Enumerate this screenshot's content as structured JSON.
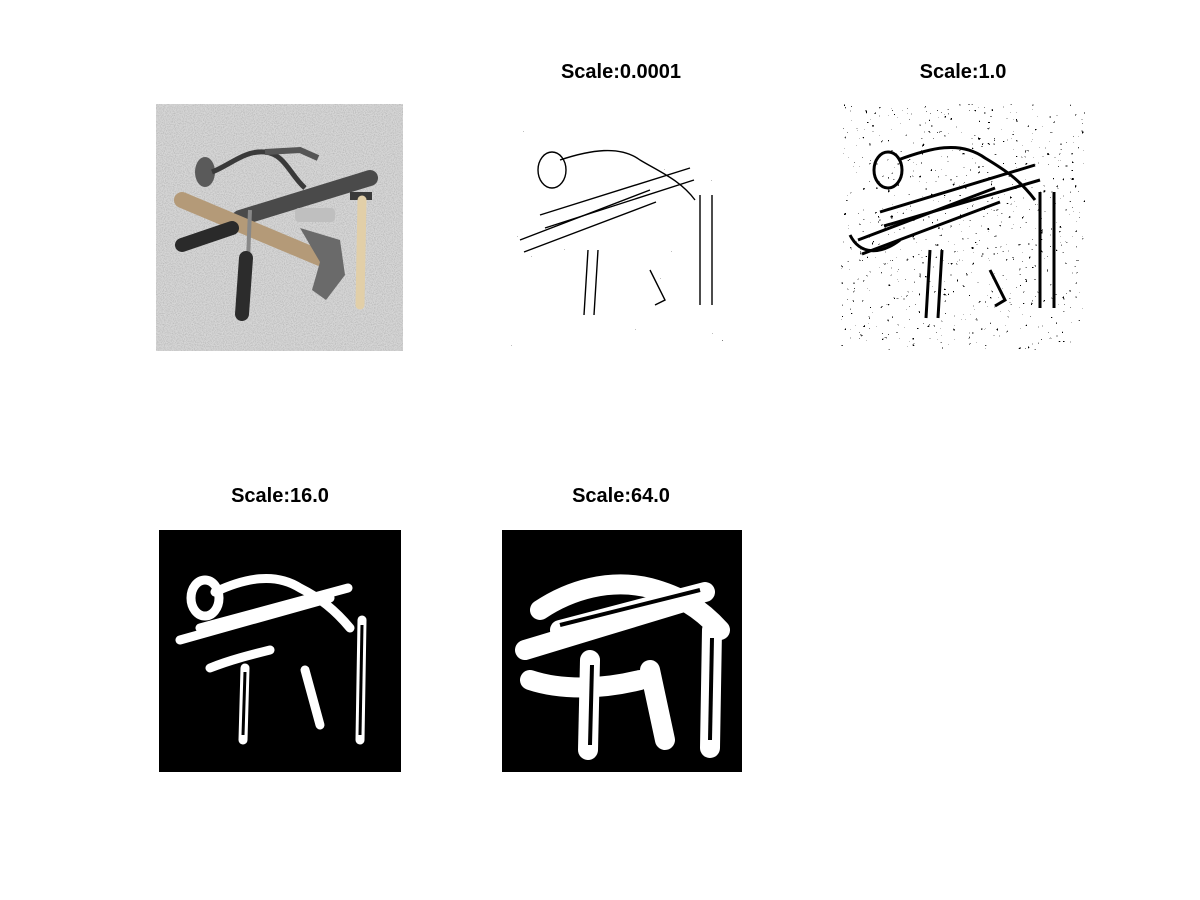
{
  "figure": {
    "subplots": [
      {
        "title": "",
        "content": "original-photo"
      },
      {
        "title": "Scale:0.0001",
        "content": "edge-map"
      },
      {
        "title": "Scale:1.0",
        "content": "edge-map"
      },
      {
        "title": "Scale:16.0",
        "content": "edge-map"
      },
      {
        "title": "Scale:64.0",
        "content": "edge-map"
      }
    ]
  }
}
